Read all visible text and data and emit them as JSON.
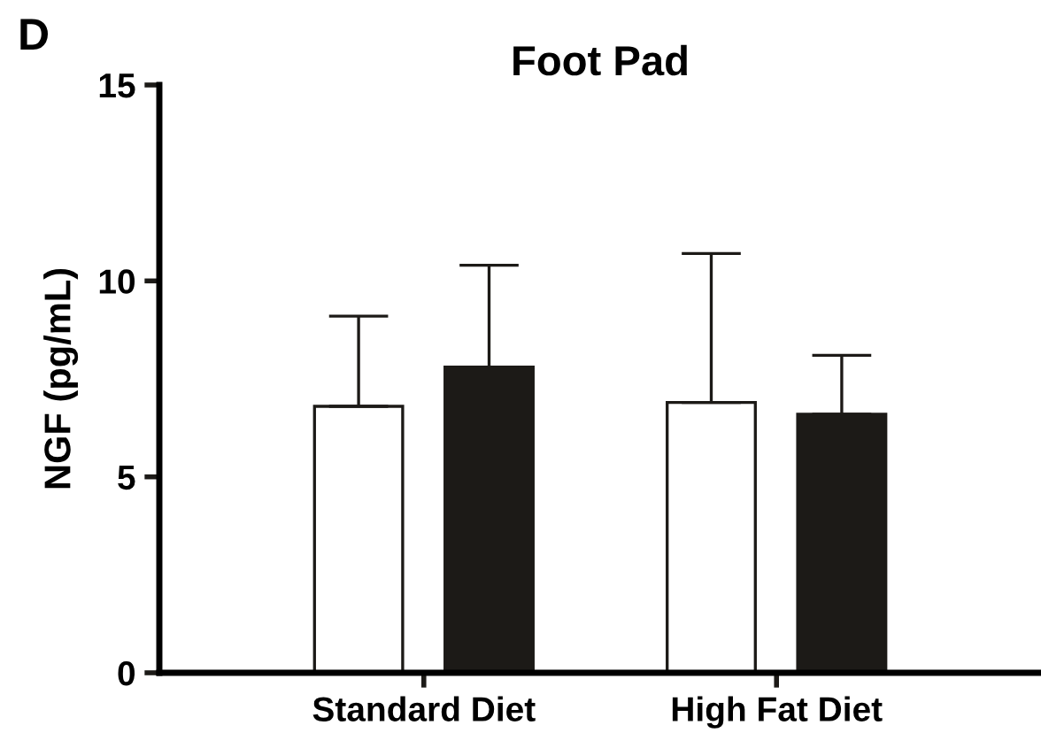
{
  "chart_data": {
    "type": "bar",
    "title": "Foot Pad",
    "ylabel": "NGF (pg/mL)",
    "annotations": [
      "D"
    ],
    "categories": [
      "Standard Diet",
      "High Fat Diet"
    ],
    "series": [
      {
        "color": "#ffffff",
        "values": [
          6.8,
          6.9
        ],
        "errors": [
          [
            6.8,
            9.1
          ],
          [
            6.9,
            10.7
          ]
        ]
      },
      {
        "color": "#1c1a17",
        "values": [
          7.8,
          6.6
        ],
        "errors": [
          [
            7.8,
            10.4
          ],
          [
            6.6,
            8.1
          ]
        ]
      }
    ],
    "ylim": [
      0,
      15
    ],
    "yticks": [
      0,
      5,
      10,
      15
    ],
    "grid": false,
    "legend": false
  }
}
